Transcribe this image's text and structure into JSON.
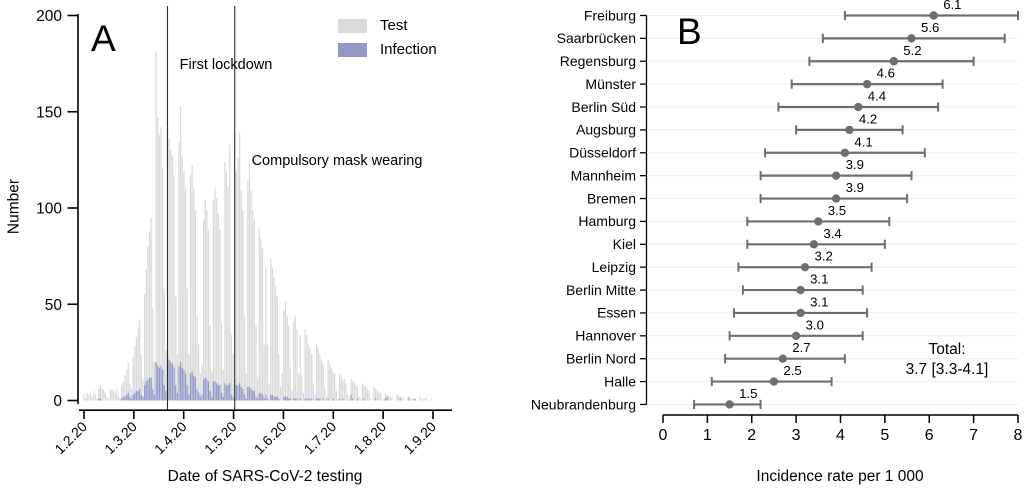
{
  "chart_data": [
    {
      "type": "bar",
      "panel_label": "A",
      "xlabel": "Date of SARS-CoV-2 testing",
      "ylabel": "Number",
      "x_tick_labels": [
        "1.2.20",
        "1.3.20",
        "1.4.20",
        "1.5.20",
        "1.6.20",
        "1.7.20",
        "1.8.20",
        "1.9.20"
      ],
      "y_ticks": [
        0,
        50,
        100,
        150,
        200
      ],
      "ylim": [
        0,
        200
      ],
      "bar_unit": "day",
      "start_date": "1.2.20",
      "grid": "off",
      "legend_position": "top-right",
      "legend": [
        {
          "label": "Test",
          "color": "#d9d9d9"
        },
        {
          "label": "Infection",
          "color": "#9597c9"
        }
      ],
      "events": [
        {
          "label": "First lockdown",
          "day_index": 51
        },
        {
          "label": "Compulsory mask wearing",
          "day_index": 92
        }
      ],
      "series": [
        {
          "name": "Test",
          "values": [
            3,
            1,
            4,
            3,
            4,
            2,
            5,
            3,
            1,
            6,
            8,
            6,
            5,
            4,
            2,
            1,
            5,
            6,
            5,
            4,
            6,
            2,
            1,
            8,
            10,
            13,
            16,
            20,
            9,
            6,
            22,
            28,
            33,
            38,
            42,
            24,
            11,
            55,
            68,
            80,
            88,
            95,
            48,
            20,
            181,
            147,
            138,
            142,
            121,
            58,
            26,
            141,
            136,
            130,
            127,
            117,
            54,
            24,
            134,
            153,
            127,
            119,
            110,
            58,
            24,
            117,
            122,
            110,
            99,
            44,
            29,
            14,
            19,
            94,
            104,
            99,
            89,
            39,
            15,
            104,
            110,
            105,
            97,
            89,
            40,
            16,
            124,
            119,
            111,
            133,
            34,
            24,
            11,
            119,
            126,
            139,
            109,
            99,
            44,
            14,
            114,
            124,
            109,
            99,
            94,
            39,
            11,
            89,
            84,
            79,
            29,
            69,
            29,
            9,
            74,
            69,
            64,
            59,
            54,
            24,
            7,
            14,
            47,
            51,
            44,
            39,
            17,
            5,
            41,
            44,
            37,
            14,
            34,
            13,
            4,
            37,
            34,
            29,
            27,
            24,
            9,
            3,
            29,
            27,
            24,
            21,
            19,
            7,
            2,
            21,
            19,
            17,
            15,
            14,
            5,
            1,
            14,
            13,
            11,
            11,
            9,
            3,
            1,
            11,
            10,
            9,
            8,
            7,
            2,
            1,
            9,
            8,
            7,
            6,
            5,
            1,
            0,
            7,
            6,
            5,
            4,
            4,
            1,
            0,
            4,
            3,
            3,
            2,
            2,
            0,
            0,
            3,
            3,
            2,
            2,
            1,
            0,
            0,
            2,
            2,
            1,
            1,
            1,
            0,
            0,
            2,
            1,
            1,
            1,
            1,
            0,
            0,
            1
          ]
        },
        {
          "name": "Infection",
          "values": [
            0,
            0,
            0,
            0,
            0,
            0,
            0,
            0,
            0,
            1,
            1,
            0,
            0,
            0,
            0,
            0,
            0,
            0,
            0,
            0,
            0,
            0,
            0,
            1,
            2,
            2,
            3,
            4,
            2,
            1,
            3,
            4,
            5,
            5,
            6,
            3,
            2,
            8,
            10,
            11,
            12,
            12,
            6,
            3,
            20,
            18,
            17,
            18,
            16,
            8,
            5,
            23,
            21,
            20,
            19,
            17,
            8,
            4,
            18,
            20,
            17,
            16,
            14,
            8,
            3,
            14,
            15,
            13,
            12,
            6,
            4,
            2,
            3,
            11,
            12,
            11,
            10,
            5,
            2,
            10,
            10,
            9,
            8,
            8,
            4,
            2,
            9,
            8,
            8,
            9,
            3,
            2,
            1,
            8,
            8,
            9,
            7,
            6,
            3,
            1,
            7,
            7,
            6,
            5,
            5,
            2,
            1,
            4,
            4,
            3,
            1,
            3,
            1,
            0,
            3,
            3,
            2,
            2,
            2,
            1,
            0,
            0,
            2,
            2,
            2,
            1,
            1,
            0,
            1,
            1,
            1,
            0,
            1,
            0,
            0,
            1,
            1,
            1,
            1,
            1,
            0,
            0,
            1,
            1,
            1,
            0,
            1,
            0,
            0,
            1,
            0,
            0,
            1,
            0,
            0,
            0,
            1,
            0,
            1,
            0,
            0,
            0,
            0,
            3,
            1,
            0,
            0,
            1,
            0,
            0,
            0,
            1,
            0,
            0,
            0,
            0,
            0,
            0,
            1,
            0,
            0,
            0,
            0,
            0,
            1,
            2,
            0,
            0,
            0,
            0,
            0,
            0,
            0,
            1,
            0,
            0,
            0,
            0,
            1,
            0,
            0,
            0,
            1,
            0,
            0,
            0,
            0,
            0,
            0,
            0,
            0,
            0,
            0
          ]
        }
      ]
    },
    {
      "type": "scatter",
      "subtype": "forest-plot",
      "panel_label": "B",
      "xlabel": "Incidence rate per 1 000",
      "x_ticks": [
        0,
        1,
        2,
        3,
        4,
        5,
        6,
        7,
        8
      ],
      "xlim": [
        0,
        8
      ],
      "grid": "horizontal",
      "point_color": "#6e6e6e",
      "gridline_color": "#ececec",
      "total_label": "Total:",
      "total_value": "3.7 [3.3-4.1]",
      "rows": [
        {
          "city": "Freiburg",
          "rate": 6.1,
          "ci_low": 4.1,
          "ci_high": 8.0
        },
        {
          "city": "Saarbrücken",
          "rate": 5.6,
          "ci_low": 3.6,
          "ci_high": 7.7
        },
        {
          "city": "Regensburg",
          "rate": 5.2,
          "ci_low": 3.3,
          "ci_high": 7.0
        },
        {
          "city": "Münster",
          "rate": 4.6,
          "ci_low": 2.9,
          "ci_high": 6.3
        },
        {
          "city": "Berlin Süd",
          "rate": 4.4,
          "ci_low": 2.6,
          "ci_high": 6.2
        },
        {
          "city": "Augsburg",
          "rate": 4.2,
          "ci_low": 3.0,
          "ci_high": 5.4
        },
        {
          "city": "Düsseldorf",
          "rate": 4.1,
          "ci_low": 2.3,
          "ci_high": 5.9
        },
        {
          "city": "Mannheim",
          "rate": 3.9,
          "ci_low": 2.2,
          "ci_high": 5.6
        },
        {
          "city": "Bremen",
          "rate": 3.9,
          "ci_low": 2.2,
          "ci_high": 5.5
        },
        {
          "city": "Hamburg",
          "rate": 3.5,
          "ci_low": 1.9,
          "ci_high": 5.1
        },
        {
          "city": "Kiel",
          "rate": 3.4,
          "ci_low": 1.9,
          "ci_high": 5.0
        },
        {
          "city": "Leipzig",
          "rate": 3.2,
          "ci_low": 1.7,
          "ci_high": 4.7
        },
        {
          "city": "Berlin Mitte",
          "rate": 3.1,
          "ci_low": 1.8,
          "ci_high": 4.5
        },
        {
          "city": "Essen",
          "rate": 3.1,
          "ci_low": 1.6,
          "ci_high": 4.6
        },
        {
          "city": "Hannover",
          "rate": 3.0,
          "ci_low": 1.5,
          "ci_high": 4.5
        },
        {
          "city": "Berlin Nord",
          "rate": 2.7,
          "ci_low": 1.4,
          "ci_high": 4.1
        },
        {
          "city": "Halle",
          "rate": 2.5,
          "ci_low": 1.1,
          "ci_high": 3.8
        },
        {
          "city": "Neubrandenburg",
          "rate": 1.5,
          "ci_low": 0.7,
          "ci_high": 2.2
        }
      ]
    }
  ]
}
